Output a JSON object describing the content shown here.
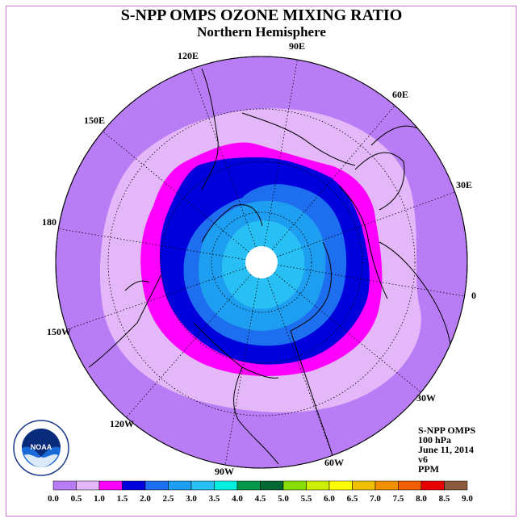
{
  "title": "S-NPP OMPS OZONE MIXING RATIO",
  "subtitle": "Northern Hemisphere",
  "info": {
    "line1": "S-NPP OMPS",
    "line2": "100 hPa",
    "line3": "June 11, 2014",
    "line4": "v6",
    "line5": "PPM"
  },
  "logo": {
    "text": "NOAA"
  },
  "longitude_labels": [
    "90E",
    "60E",
    "30E",
    "0",
    "30W",
    "60W",
    "90W",
    "120W",
    "150W",
    "180",
    "150E",
    "120E"
  ],
  "colorbar": {
    "ticks": [
      "0.0",
      "0.5",
      "1.0",
      "1.5",
      "2.0",
      "2.5",
      "3.0",
      "3.5",
      "4.0",
      "4.5",
      "5.0",
      "5.5",
      "6.0",
      "6.5",
      "7.0",
      "7.5",
      "8.0",
      "8.5",
      "9.0"
    ],
    "colors": [
      "#b87cf4",
      "#e4b8f8",
      "#ff00ff",
      "#0000dd",
      "#1e6ef0",
      "#1e9ef0",
      "#28c0f4",
      "#00f0e0",
      "#009848",
      "#006830",
      "#88dd00",
      "#ccee00",
      "#ffff00",
      "#f0c000",
      "#f09000",
      "#f06000",
      "#e80000",
      "#8b5a3c"
    ]
  },
  "map_colors": {
    "outer": "#b87cf4",
    "level_0_5": "#e4b8f8",
    "level_1_0": "#ff00ff",
    "level_1_5": "#0000dd",
    "level_2_0": "#1e6ef0",
    "level_2_5": "#1e9ef0",
    "level_3_0": "#28c0f4",
    "pole": "#ffffff"
  }
}
